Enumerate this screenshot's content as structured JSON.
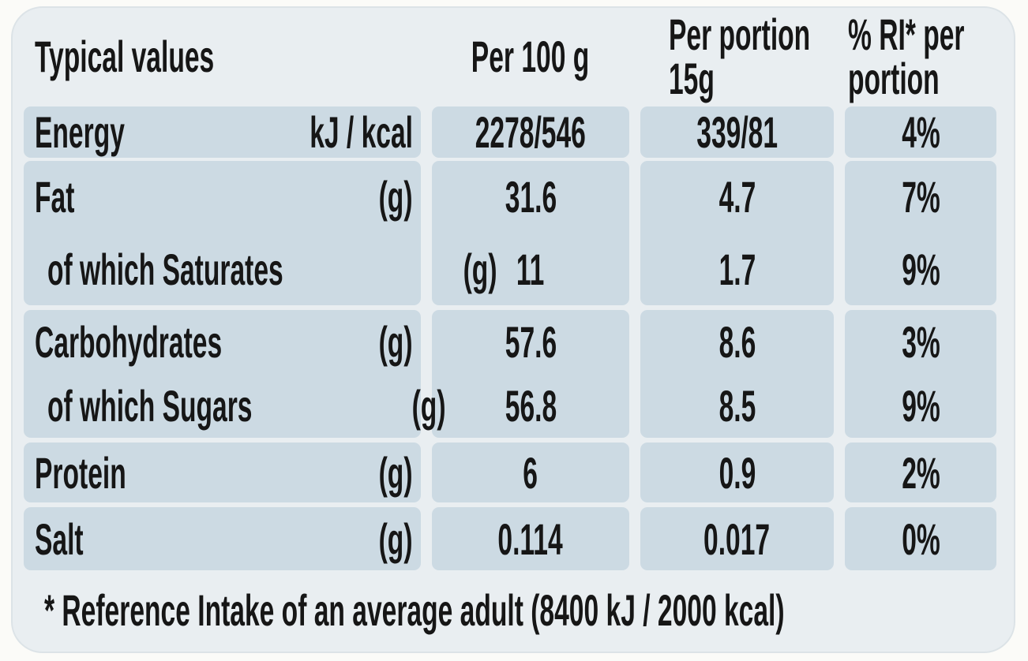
{
  "colors": {
    "page_background": "#fbfbf8",
    "panel_background": "#e9eef1",
    "cell_background": "#ccdae3",
    "panel_border": "#dce3e7",
    "text": "#161616"
  },
  "table": {
    "header": {
      "typical_values": "Typical values",
      "per_100g": "Per 100 g",
      "per_portion_line1": "Per portion",
      "per_portion_line2": "15g",
      "ri_line1": "% RI* per",
      "ri_line2": "portion"
    },
    "groups": [
      {
        "rows": [
          {
            "label": "Energy",
            "unit": "kJ / kcal",
            "per100": "2278/546",
            "portion": "339/81",
            "ri": "4%"
          }
        ]
      },
      {
        "rows": [
          {
            "label": "Fat",
            "unit": "(g)",
            "per100": "31.6",
            "portion": "4.7",
            "ri": "7%"
          },
          {
            "label": "of which Saturates",
            "unit": "(g)",
            "per100": "11",
            "portion": "1.7",
            "ri": "9%"
          }
        ]
      },
      {
        "rows": [
          {
            "label": "Carbohydrates",
            "unit": "(g)",
            "per100": "57.6",
            "portion": "8.6",
            "ri": "3%"
          },
          {
            "label": "of which Sugars",
            "unit": "(g)",
            "per100": "56.8",
            "portion": "8.5",
            "ri": "9%"
          }
        ]
      },
      {
        "rows": [
          {
            "label": "Protein",
            "unit": "(g)",
            "per100": "6",
            "portion": "0.9",
            "ri": "2%"
          }
        ]
      },
      {
        "rows": [
          {
            "label": "Salt",
            "unit": "(g)",
            "per100": "0.114",
            "portion": "0.017",
            "ri": "0%"
          }
        ]
      }
    ],
    "footnote": "* Reference Intake of an average adult (8400 kJ / 2000 kcal)"
  }
}
